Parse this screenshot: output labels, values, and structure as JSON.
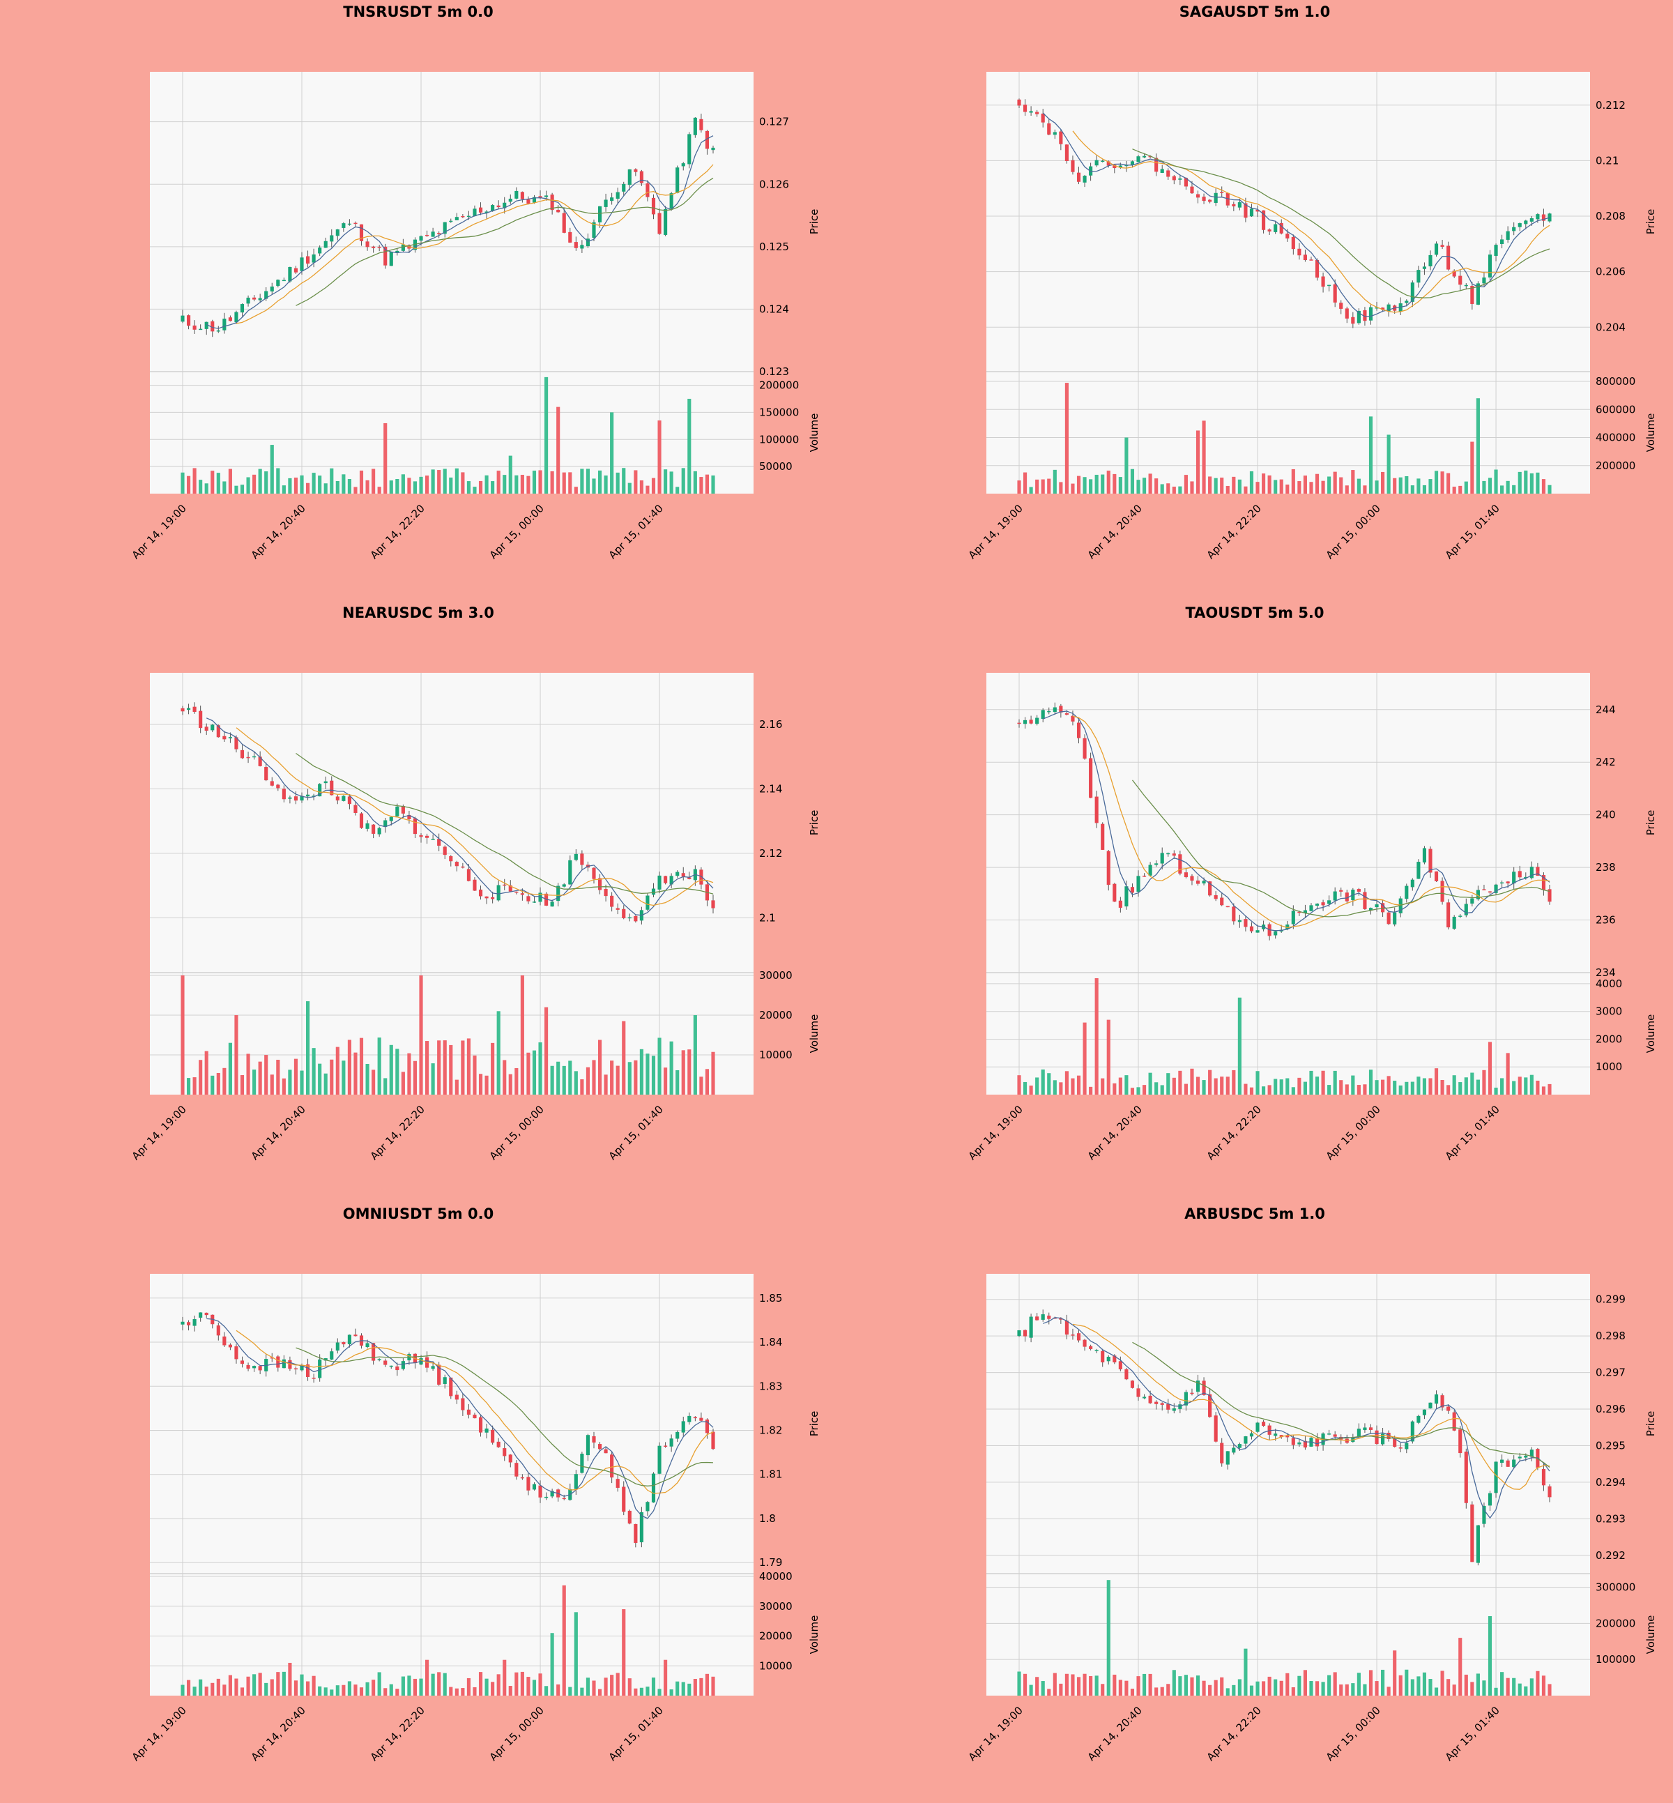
{
  "colors": {
    "background": "#f9a59a",
    "plot_bg": "#f8f8f8",
    "grid": "#d0d0d0",
    "up": "#18a577",
    "down": "#e8454f",
    "vol_up": "#3fbf93",
    "vol_down": "#ef636a",
    "ma_fast": "#4a6a9a",
    "ma_mid": "#e8a030",
    "ma_slow": "#6b8f4b"
  },
  "chart_data": [
    {
      "type": "candlestick",
      "title": "TNSRUSDT 5m 0.0",
      "ylabel": "Price",
      "vlabel": "Volume",
      "x_ticks": [
        "Apr 14, 19:00",
        "Apr 14, 20:40",
        "Apr 14, 22:20",
        "Apr 15, 00:00",
        "Apr 15, 01:40"
      ],
      "price_ticks": [
        0.123,
        0.124,
        0.125,
        0.126,
        0.127
      ],
      "ylim": [
        0.123,
        0.1278
      ],
      "volume_ticks": [
        50000,
        100000,
        150000,
        200000
      ],
      "vlim": [
        0,
        220000
      ],
      "n": 90,
      "start": 0.1238,
      "end": 0.1265,
      "waypoints": [
        [
          0,
          0.1238
        ],
        [
          6,
          0.1237
        ],
        [
          18,
          0.1246
        ],
        [
          28,
          0.1254
        ],
        [
          34,
          0.1248
        ],
        [
          40,
          0.1251
        ],
        [
          50,
          0.1256
        ],
        [
          56,
          0.1258
        ],
        [
          62,
          0.1257
        ],
        [
          66,
          0.1249
        ],
        [
          72,
          0.1259
        ],
        [
          76,
          0.1262
        ],
        [
          80,
          0.1253
        ],
        [
          86,
          0.127
        ],
        [
          89,
          0.1265
        ]
      ],
      "seed": 11,
      "vol_base": 30000,
      "spikes": [
        [
          15,
          90000
        ],
        [
          34,
          130000
        ],
        [
          55,
          70000
        ],
        [
          61,
          215000
        ],
        [
          63,
          160000
        ],
        [
          72,
          150000
        ],
        [
          80,
          135000
        ],
        [
          85,
          175000
        ]
      ]
    },
    {
      "type": "candlestick",
      "title": "SAGAUSDT 5m 1.0",
      "ylabel": "Price",
      "vlabel": "Volume",
      "x_ticks": [
        "Apr 14, 19:00",
        "Apr 14, 20:40",
        "Apr 14, 22:20",
        "Apr 15, 00:00",
        "Apr 15, 01:40"
      ],
      "price_ticks": [
        0.204,
        0.206,
        0.208,
        0.21,
        0.212
      ],
      "ylim": [
        0.2024,
        0.2132
      ],
      "volume_ticks": [
        200000,
        400000,
        600000,
        800000
      ],
      "vlim": [
        0,
        850000
      ],
      "n": 90,
      "start": 0.2122,
      "end": 0.208,
      "waypoints": [
        [
          0,
          0.2122
        ],
        [
          5,
          0.2112
        ],
        [
          10,
          0.2095
        ],
        [
          16,
          0.21
        ],
        [
          22,
          0.21
        ],
        [
          28,
          0.209
        ],
        [
          36,
          0.2085
        ],
        [
          46,
          0.207
        ],
        [
          56,
          0.2043
        ],
        [
          64,
          0.2048
        ],
        [
          70,
          0.207
        ],
        [
          76,
          0.205
        ],
        [
          80,
          0.2068
        ],
        [
          86,
          0.208
        ],
        [
          89,
          0.208
        ]
      ],
      "seed": 22,
      "vol_base": 110000,
      "spikes": [
        [
          8,
          790000
        ],
        [
          18,
          400000
        ],
        [
          30,
          450000
        ],
        [
          31,
          520000
        ],
        [
          59,
          550000
        ],
        [
          62,
          420000
        ],
        [
          76,
          370000
        ],
        [
          77,
          680000
        ]
      ]
    },
    {
      "type": "candlestick",
      "title": "NEARUSDC 5m 3.0",
      "ylabel": "Price",
      "vlabel": "Volume",
      "x_ticks": [
        "Apr 14, 19:00",
        "Apr 14, 20:40",
        "Apr 14, 22:20",
        "Apr 15, 00:00",
        "Apr 15, 01:40"
      ],
      "price_ticks": [
        2.1,
        2.12,
        2.14,
        2.16
      ],
      "ylim": [
        2.083,
        2.176
      ],
      "volume_ticks": [
        10000,
        20000,
        30000
      ],
      "vlim": [
        0,
        30000
      ],
      "n": 90,
      "start": 2.165,
      "end": 2.103,
      "waypoints": [
        [
          0,
          2.165
        ],
        [
          6,
          2.157
        ],
        [
          12,
          2.148
        ],
        [
          19,
          2.135
        ],
        [
          24,
          2.142
        ],
        [
          32,
          2.125
        ],
        [
          36,
          2.133
        ],
        [
          44,
          2.12
        ],
        [
          50,
          2.108
        ],
        [
          56,
          2.108
        ],
        [
          62,
          2.105
        ],
        [
          66,
          2.12
        ],
        [
          70,
          2.11
        ],
        [
          76,
          2.097
        ],
        [
          80,
          2.113
        ],
        [
          86,
          2.113
        ],
        [
          89,
          2.103
        ]
      ],
      "seed": 33,
      "vol_base": 9000,
      "spikes": [
        [
          0,
          30000
        ],
        [
          9,
          20000
        ],
        [
          21,
          23500
        ],
        [
          40,
          30000
        ],
        [
          53,
          21000
        ],
        [
          57,
          30000
        ],
        [
          61,
          22000
        ],
        [
          74,
          18500
        ],
        [
          86,
          20000
        ]
      ]
    },
    {
      "type": "candlestick",
      "title": "TAOUSDT 5m 5.0",
      "ylabel": "Price",
      "vlabel": "Volume",
      "x_ticks": [
        "Apr 14, 19:00",
        "Apr 14, 20:40",
        "Apr 14, 22:20",
        "Apr 15, 00:00",
        "Apr 15, 01:40"
      ],
      "price_ticks": [
        234,
        236,
        238,
        240,
        242,
        244
      ],
      "ylim": [
        234.0,
        245.4
      ],
      "volume_ticks": [
        1000,
        2000,
        3000,
        4000
      ],
      "vlim": [
        0,
        4300
      ],
      "n": 90,
      "start": 243.5,
      "end": 236.8,
      "waypoints": [
        [
          0,
          243.5
        ],
        [
          7,
          244.0
        ],
        [
          10,
          243.0
        ],
        [
          16,
          236.5
        ],
        [
          20,
          237.5
        ],
        [
          24,
          238.5
        ],
        [
          30,
          237.5
        ],
        [
          36,
          236.0
        ],
        [
          42,
          235.5
        ],
        [
          50,
          236.8
        ],
        [
          56,
          237.0
        ],
        [
          62,
          236.0
        ],
        [
          68,
          238.5
        ],
        [
          72,
          236.0
        ],
        [
          80,
          237.5
        ],
        [
          86,
          238.0
        ],
        [
          89,
          236.8
        ]
      ],
      "seed": 44,
      "vol_base": 600,
      "spikes": [
        [
          11,
          2600
        ],
        [
          13,
          4200
        ],
        [
          15,
          2700
        ],
        [
          37,
          3500
        ],
        [
          59,
          900
        ],
        [
          79,
          1900
        ],
        [
          82,
          1500
        ]
      ]
    },
    {
      "type": "candlestick",
      "title": "OMNIUSDT 5m 0.0",
      "ylabel": "Price",
      "vlabel": "Volume",
      "x_ticks": [
        "Apr 14, 19:00",
        "Apr 14, 20:40",
        "Apr 14, 22:20",
        "Apr 15, 00:00",
        "Apr 15, 01:40"
      ],
      "price_ticks": [
        1.79,
        1.8,
        1.81,
        1.82,
        1.83,
        1.84,
        1.85
      ],
      "ylim": [
        1.7875,
        1.8555
      ],
      "volume_ticks": [
        10000,
        20000,
        30000,
        40000
      ],
      "vlim": [
        0,
        40000
      ],
      "n": 90,
      "start": 1.844,
      "end": 1.817,
      "waypoints": [
        [
          0,
          1.844
        ],
        [
          4,
          1.846
        ],
        [
          10,
          1.835
        ],
        [
          16,
          1.835
        ],
        [
          22,
          1.833
        ],
        [
          28,
          1.842
        ],
        [
          34,
          1.835
        ],
        [
          40,
          1.836
        ],
        [
          46,
          1.828
        ],
        [
          52,
          1.817
        ],
        [
          58,
          1.808
        ],
        [
          64,
          1.803
        ],
        [
          68,
          1.82
        ],
        [
          72,
          1.811
        ],
        [
          76,
          1.795
        ],
        [
          80,
          1.815
        ],
        [
          86,
          1.824
        ],
        [
          89,
          1.817
        ]
      ],
      "seed": 55,
      "vol_base": 5000,
      "spikes": [
        [
          18,
          11000
        ],
        [
          41,
          12000
        ],
        [
          54,
          12000
        ],
        [
          62,
          21000
        ],
        [
          64,
          37000
        ],
        [
          66,
          28000
        ],
        [
          74,
          29000
        ],
        [
          81,
          12000
        ]
      ]
    },
    {
      "type": "candlestick",
      "title": "ARBUSDC 5m 1.0",
      "ylabel": "Price",
      "vlabel": "Volume",
      "x_ticks": [
        "Apr 14, 19:00",
        "Apr 14, 20:40",
        "Apr 14, 22:20",
        "Apr 15, 00:00",
        "Apr 15, 01:40"
      ],
      "price_ticks": [
        0.292,
        0.293,
        0.294,
        0.295,
        0.296,
        0.297,
        0.298,
        0.299
      ],
      "ylim": [
        0.2915,
        0.2997
      ],
      "volume_ticks": [
        100000,
        200000,
        300000
      ],
      "vlim": [
        0,
        330000
      ],
      "n": 90,
      "start": 0.298,
      "end": 0.2934,
      "waypoints": [
        [
          0,
          0.298
        ],
        [
          4,
          0.2987
        ],
        [
          10,
          0.2978
        ],
        [
          16,
          0.2972
        ],
        [
          20,
          0.2962
        ],
        [
          26,
          0.296
        ],
        [
          30,
          0.2968
        ],
        [
          34,
          0.2946
        ],
        [
          40,
          0.2955
        ],
        [
          46,
          0.295
        ],
        [
          52,
          0.2952
        ],
        [
          58,
          0.2953
        ],
        [
          64,
          0.295
        ],
        [
          70,
          0.2965
        ],
        [
          74,
          0.295
        ],
        [
          76,
          0.292
        ],
        [
          80,
          0.2945
        ],
        [
          86,
          0.2948
        ],
        [
          89,
          0.2934
        ]
      ],
      "seed": 66,
      "vol_base": 45000,
      "spikes": [
        [
          15,
          320000
        ],
        [
          38,
          130000
        ],
        [
          63,
          125000
        ],
        [
          74,
          160000
        ],
        [
          79,
          220000
        ]
      ]
    }
  ]
}
